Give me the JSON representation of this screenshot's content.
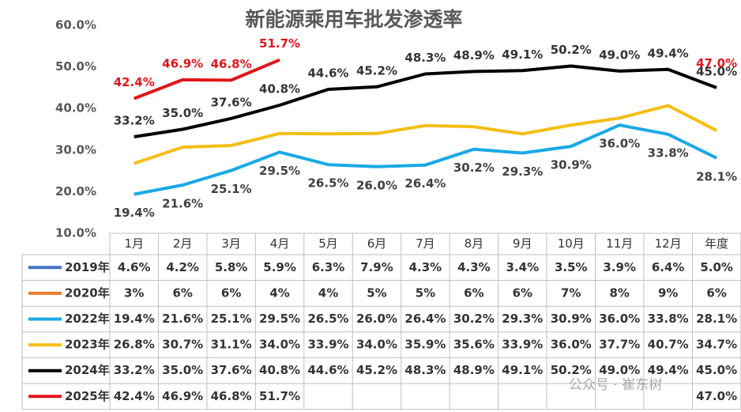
{
  "chart_data": {
    "type": "line",
    "title": "新能源乘用车批发渗透率",
    "categories": [
      "1月",
      "2月",
      "3月",
      "4月",
      "5月",
      "6月",
      "7月",
      "8月",
      "9月",
      "10月",
      "11月",
      "12月",
      "年度"
    ],
    "ylim": [
      10,
      60
    ],
    "yticks": [
      {
        "value": 10,
        "label": "10.0%"
      },
      {
        "value": 20,
        "label": "20.0%"
      },
      {
        "value": 30,
        "label": "30.0%"
      },
      {
        "value": 40,
        "label": "40.0%"
      },
      {
        "value": 50,
        "label": "50.0%"
      },
      {
        "value": 60,
        "label": "60.0%"
      }
    ],
    "grid": false,
    "series": [
      {
        "name": "2019年",
        "color": "#4472c4",
        "data_labels": false,
        "values": [
          4.6,
          4.2,
          5.8,
          5.9,
          6.3,
          7.9,
          4.3,
          4.3,
          3.4,
          3.5,
          3.9,
          6.4,
          5.0
        ],
        "value_labels": [
          "4.6%",
          "4.2%",
          "5.8%",
          "5.9%",
          "6.3%",
          "7.9%",
          "4.3%",
          "4.3%",
          "3.4%",
          "3.5%",
          "3.9%",
          "6.4%",
          "5.0%"
        ]
      },
      {
        "name": "2020年",
        "color": "#ed7d31",
        "data_labels": false,
        "values": [
          3,
          6,
          6,
          4,
          4,
          5,
          5,
          6,
          6,
          7,
          8,
          9,
          6
        ],
        "value_labels": [
          "3%",
          "6%",
          "6%",
          "4%",
          "4%",
          "5%",
          "5%",
          "6%",
          "6%",
          "7%",
          "8%",
          "9%",
          "6%"
        ]
      },
      {
        "name": "2022年",
        "color": "#1aa9e6",
        "data_labels": true,
        "values": [
          19.4,
          21.6,
          25.1,
          29.5,
          26.5,
          26.0,
          26.4,
          30.2,
          29.3,
          30.9,
          36.0,
          33.8,
          28.1
        ],
        "value_labels": [
          "19.4%",
          "21.6%",
          "25.1%",
          "29.5%",
          "26.5%",
          "26.0%",
          "26.4%",
          "30.2%",
          "29.3%",
          "30.9%",
          "36.0%",
          "33.8%",
          "28.1%"
        ]
      },
      {
        "name": "2023年",
        "color": "#f5be14",
        "data_labels": false,
        "values": [
          26.8,
          30.7,
          31.1,
          34.0,
          33.9,
          34.0,
          35.9,
          35.6,
          33.9,
          36.0,
          37.7,
          40.7,
          34.7
        ],
        "value_labels": [
          "26.8%",
          "30.7%",
          "31.1%",
          "34.0%",
          "33.9%",
          "34.0%",
          "35.9%",
          "35.6%",
          "33.9%",
          "36.0%",
          "37.7%",
          "40.7%",
          "34.7%"
        ]
      },
      {
        "name": "2024年",
        "color": "#000000",
        "data_labels": true,
        "values": [
          33.2,
          35.0,
          37.6,
          40.8,
          44.6,
          45.2,
          48.3,
          48.9,
          49.1,
          50.2,
          49.0,
          49.4,
          45.0
        ],
        "value_labels": [
          "33.2%",
          "35.0%",
          "37.6%",
          "40.8%",
          "44.6%",
          "45.2%",
          "48.3%",
          "48.9%",
          "49.1%",
          "50.2%",
          "49.0%",
          "49.4%",
          "45.0%"
        ]
      },
      {
        "name": "2025年",
        "color": "#e0161c",
        "data_labels": true,
        "values": [
          42.4,
          46.9,
          46.8,
          51.7,
          null,
          null,
          null,
          null,
          null,
          null,
          null,
          null,
          47.0
        ],
        "value_labels": [
          "42.4%",
          "46.9%",
          "46.8%",
          "51.7%",
          null,
          null,
          null,
          null,
          null,
          null,
          null,
          null,
          "47.0%"
        ]
      }
    ],
    "watermark": "公众号 · 崔东树"
  }
}
